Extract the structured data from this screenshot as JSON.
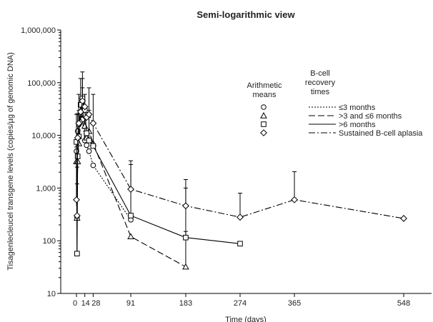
{
  "chart_data": {
    "type": "line",
    "title": "Semi-logarithmic view",
    "xlabel": "Time (days)",
    "ylabel": "Tisagenlecleucel transgene levels (copies/µg of genomic DNA)",
    "x_ticks": [
      0,
      14,
      28,
      91,
      183,
      274,
      365,
      548
    ],
    "xlim": [
      -10,
      600
    ],
    "y_scale": "log",
    "ylim": [
      10,
      1000000
    ],
    "y_ticks": [
      10,
      100,
      1000,
      10000,
      100000,
      1000000
    ],
    "y_tick_labels": [
      "10",
      "100",
      "1,000",
      "10,000",
      "100,000",
      "1,000,000"
    ],
    "grid": false,
    "legend": {
      "position": "right",
      "marker_header": "Arithmetic means",
      "line_header": "B-cell recovery times"
    },
    "series": [
      {
        "name": "≤3 months",
        "marker": "circle",
        "dash": "dotted",
        "x": [
          0,
          1,
          2,
          4,
          7,
          10,
          14,
          17,
          21,
          28,
          91
        ],
        "y": [
          5000,
          280,
          12000,
          16000,
          25000,
          20000,
          8000,
          6500,
          5000,
          2700,
          250
        ],
        "err_up": [
          null,
          null,
          26000,
          30000,
          40000,
          40000,
          20000,
          null,
          null,
          null,
          null
        ]
      },
      {
        "name": ">3 and ≤6 months",
        "marker": "triangle",
        "dash": "dashed",
        "x": [
          0,
          1,
          2,
          4,
          7,
          10,
          14,
          17,
          21,
          28,
          91,
          183
        ],
        "y": [
          3200,
          270,
          3200,
          7000,
          18000,
          30000,
          15000,
          9000,
          12000,
          7000,
          120,
          32
        ],
        "err_up": [
          null,
          null,
          null,
          null,
          50000,
          80000,
          null,
          null,
          30000,
          null,
          null,
          150
        ]
      },
      {
        "name": ">6 months",
        "marker": "square",
        "dash": "solid",
        "x": [
          0,
          1,
          2,
          4,
          7,
          10,
          14,
          17,
          21,
          28,
          91,
          183,
          274
        ],
        "y": [
          7500,
          57,
          4000,
          9500,
          38000,
          50000,
          30000,
          11000,
          8000,
          6300,
          300,
          115,
          88
        ],
        "err_up": [
          25000,
          1200,
          null,
          null,
          120000,
          160000,
          60000,
          null,
          80000,
          60000,
          2800,
          1000,
          null
        ]
      },
      {
        "name": "Sustained B-cell aplasia",
        "marker": "diamond",
        "dash": "dashdot",
        "x": [
          0,
          1,
          2,
          4,
          7,
          10,
          14,
          17,
          21,
          28,
          91,
          183,
          274,
          365,
          548
        ],
        "y": [
          600,
          300,
          9000,
          17000,
          28000,
          45000,
          35000,
          22000,
          25000,
          17000,
          950,
          460,
          280,
          600,
          265
        ],
        "err_up": [
          6000,
          2500,
          null,
          60000,
          null,
          120000,
          null,
          null,
          null,
          null,
          3300,
          1450,
          800,
          2050,
          null
        ]
      }
    ]
  }
}
